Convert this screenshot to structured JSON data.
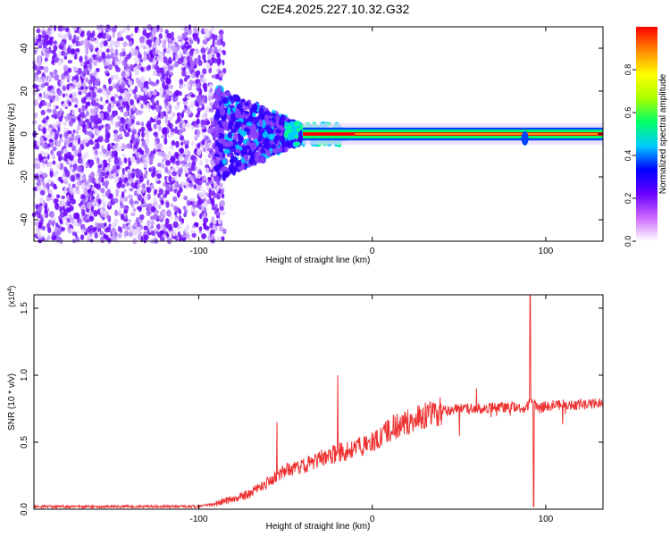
{
  "title": "C2E4.2025.227.10.32.G32",
  "chart_data": [
    {
      "type": "heatmap",
      "xlabel": "Height of straight line (km)",
      "ylabel": "Frequency (Hz)",
      "xlim": [
        -195,
        133
      ],
      "ylim": [
        -50,
        50
      ],
      "xticks": [
        -100,
        0,
        100
      ],
      "xtick_labels": [
        "-100",
        "0",
        "100"
      ],
      "yticks": [
        -40,
        -20,
        0,
        20,
        40
      ],
      "ytick_labels": [
        "-40",
        "-20",
        "0",
        "20",
        "40"
      ],
      "colorbar": {
        "label": "Normalized spectral amplitude",
        "range": [
          0,
          1
        ],
        "ticks": [
          0.0,
          0.2,
          0.4,
          0.6,
          0.8
        ],
        "tick_labels": [
          "0.0",
          "0.2",
          "0.4",
          "0.6",
          "0.8"
        ],
        "colors": [
          "#ffffff",
          "#cc66ff",
          "#6600ff",
          "#0000ff",
          "#00ccff",
          "#00ff66",
          "#aaff00",
          "#ffff00",
          "#ff8800",
          "#ff0000"
        ]
      },
      "regions": [
        {
          "description_x": [
            -195,
            -90
          ],
          "band_hz": [
            -50,
            50
          ],
          "amplitude": 0.15
        },
        {
          "description_x": [
            -90,
            -50
          ],
          "band_hz": [
            -20,
            20
          ],
          "amplitude": 0.3
        },
        {
          "description_x": [
            -50,
            130
          ],
          "band_hz": [
            -3,
            3
          ],
          "amplitude": 0.9
        }
      ]
    },
    {
      "type": "line",
      "xlabel": "Height of straight line (km)",
      "ylabel": "SNR (10 * v/v)",
      "multiplier_label": "(x10",
      "multiplier_exp": "4",
      "multiplier_close": ")",
      "xlim": [
        -195,
        133
      ],
      "ylim": [
        0,
        1.6
      ],
      "xticks": [
        -100,
        0,
        100
      ],
      "xtick_labels": [
        "-100",
        "0",
        "100"
      ],
      "yticks": [
        0.0,
        0.5,
        1.0,
        1.5
      ],
      "ytick_labels": [
        "0.0",
        "0.5",
        "1.0",
        "1.5"
      ],
      "color": "#ee3333",
      "series": [
        {
          "x": [
            -195,
            -150,
            -100,
            -90,
            -80,
            -70,
            -60,
            -50,
            -40,
            -30,
            -20,
            -10,
            0,
            10,
            20,
            30,
            40,
            50,
            60,
            70,
            80,
            88,
            92,
            96,
            100,
            110,
            120,
            133
          ],
          "values": [
            0.02,
            0.02,
            0.02,
            0.04,
            0.08,
            0.12,
            0.2,
            0.3,
            0.32,
            0.38,
            0.42,
            0.45,
            0.5,
            0.6,
            0.65,
            0.7,
            0.73,
            0.75,
            0.75,
            0.76,
            0.76,
            0.75,
            0.8,
            0.75,
            0.77,
            0.78,
            0.78,
            0.79
          ]
        }
      ],
      "spikes": [
        {
          "x": -55,
          "value": 0.65
        },
        {
          "x": -20,
          "value": 1.0
        },
        {
          "x": 60,
          "value": 0.9
        },
        {
          "x": 91,
          "value": 1.6
        },
        {
          "x": 93,
          "value": 0.02
        }
      ]
    }
  ]
}
